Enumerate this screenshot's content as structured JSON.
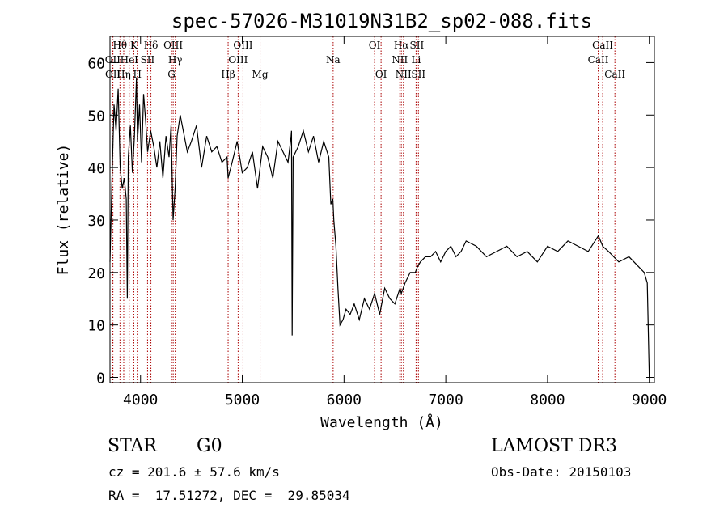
{
  "chart_data": {
    "type": "line",
    "title": "spec-57026-M31019N31B2_sp02-088.fits",
    "xlabel": "Wavelength (Å)",
    "ylabel": "Flux (relative)",
    "xlim": [
      3700,
      9050
    ],
    "ylim": [
      -1,
      65
    ],
    "xticks": [
      4000,
      5000,
      6000,
      7000,
      8000,
      9000
    ],
    "yticks": [
      0,
      10,
      20,
      30,
      40,
      50,
      60
    ],
    "grid": false,
    "series": [
      {
        "x": [
          3700,
          3720,
          3740,
          3760,
          3780,
          3800,
          3820,
          3840,
          3860,
          3870,
          3880,
          3900,
          3920,
          3940,
          3960,
          3970,
          3990,
          4010,
          4030,
          4050,
          4070,
          4100,
          4130,
          4160,
          4190,
          4220,
          4250,
          4280,
          4300,
          4320,
          4340,
          4360,
          4390,
          4420,
          4460,
          4500,
          4550,
          4600,
          4650,
          4700,
          4750,
          4800,
          4850,
          4861,
          4900,
          4950,
          5000,
          5050,
          5100,
          5150,
          5200,
          5250,
          5300,
          5350,
          5400,
          5450,
          5480,
          5484,
          5490,
          5500,
          5550,
          5600,
          5650,
          5700,
          5750,
          5800,
          5850,
          5870,
          5890,
          5900,
          5920,
          5940,
          5960,
          5990,
          6020,
          6060,
          6100,
          6150,
          6200,
          6250,
          6300,
          6350,
          6400,
          6450,
          6500,
          6550,
          6563,
          6600,
          6650,
          6700,
          6720,
          6750,
          6800,
          6850,
          6900,
          6950,
          7000,
          7050,
          7100,
          7150,
          7200,
          7300,
          7400,
          7500,
          7600,
          7700,
          7800,
          7900,
          8000,
          8100,
          8200,
          8300,
          8400,
          8500,
          8542,
          8600,
          8700,
          8800,
          8900,
          8950,
          8980,
          9000
        ],
        "values": [
          22,
          38,
          52,
          47,
          55,
          40,
          36,
          38,
          34,
          15,
          42,
          48,
          39,
          46,
          57,
          45,
          52,
          41,
          54,
          49,
          43,
          47,
          44,
          40,
          45,
          38,
          46,
          42,
          48,
          30,
          36,
          46,
          50,
          47,
          43,
          45,
          48,
          40,
          46,
          43,
          44,
          41,
          42,
          38,
          41,
          45,
          39,
          40,
          43,
          36,
          44,
          42,
          38,
          45,
          43,
          41,
          46,
          47,
          8,
          42,
          44,
          47,
          43,
          46,
          41,
          45,
          42,
          33,
          34,
          30,
          25,
          17,
          10,
          11,
          13,
          12,
          14,
          11,
          15,
          13,
          16,
          12,
          17,
          15,
          14,
          17,
          16,
          18,
          20,
          20,
          21,
          22,
          23,
          23,
          24,
          22,
          24,
          25,
          23,
          24,
          26,
          25,
          23,
          24,
          25,
          23,
          24,
          22,
          25,
          24,
          26,
          25,
          24,
          27,
          25,
          24,
          22,
          23,
          21,
          20,
          18,
          0
        ]
      }
    ],
    "line_labels": [
      {
        "label": "Hθ",
        "x": 3798,
        "row": 0
      },
      {
        "label": "Hη",
        "x": 3835,
        "row": 2
      },
      {
        "label": "OII",
        "x": 3727,
        "row": 1
      },
      {
        "label": "OII",
        "x": 3729,
        "row": 2
      },
      {
        "label": "HeI",
        "x": 3889,
        "row": 1
      },
      {
        "label": "K",
        "x": 3934,
        "row": 0
      },
      {
        "label": "H",
        "x": 3968,
        "row": 2
      },
      {
        "label": "SII",
        "x": 4069,
        "row": 1
      },
      {
        "label": "Hδ",
        "x": 4102,
        "row": 0
      },
      {
        "label": "OIII",
        "x": 4321,
        "row": 0
      },
      {
        "label": "Hγ",
        "x": 4341,
        "row": 1
      },
      {
        "label": "G",
        "x": 4305,
        "row": 2
      },
      {
        "label": "Hβ",
        "x": 4861,
        "row": 2
      },
      {
        "label": "OIII",
        "x": 4959,
        "row": 1
      },
      {
        "label": "OIII",
        "x": 5007,
        "row": 0
      },
      {
        "label": "Mg",
        "x": 5175,
        "row": 2
      },
      {
        "label": "Na",
        "x": 5893,
        "row": 1
      },
      {
        "label": "OI",
        "x": 6300,
        "row": 0
      },
      {
        "label": "OI",
        "x": 6364,
        "row": 2
      },
      {
        "label": "Hα",
        "x": 6563,
        "row": 0
      },
      {
        "label": "NII",
        "x": 6548,
        "row": 1
      },
      {
        "label": "NII",
        "x": 6584,
        "row": 2
      },
      {
        "label": "SII",
        "x": 6716,
        "row": 0
      },
      {
        "label": "Li",
        "x": 6708,
        "row": 1
      },
      {
        "label": "SII",
        "x": 6731,
        "row": 2
      },
      {
        "label": "CaII",
        "x": 8542,
        "row": 0
      },
      {
        "label": "CaII",
        "x": 8498,
        "row": 1
      },
      {
        "label": "CaII",
        "x": 8662,
        "row": 2
      }
    ],
    "line_color": "#aa0000"
  },
  "info": {
    "class": "STAR",
    "subclass": "G0",
    "survey": "LAMOST DR3",
    "cz": "cz = 201.6 ± 57.6 km/s",
    "obs_date": "Obs-Date: 20150103",
    "coords": "RA =  17.51272, DEC =  29.85034"
  }
}
